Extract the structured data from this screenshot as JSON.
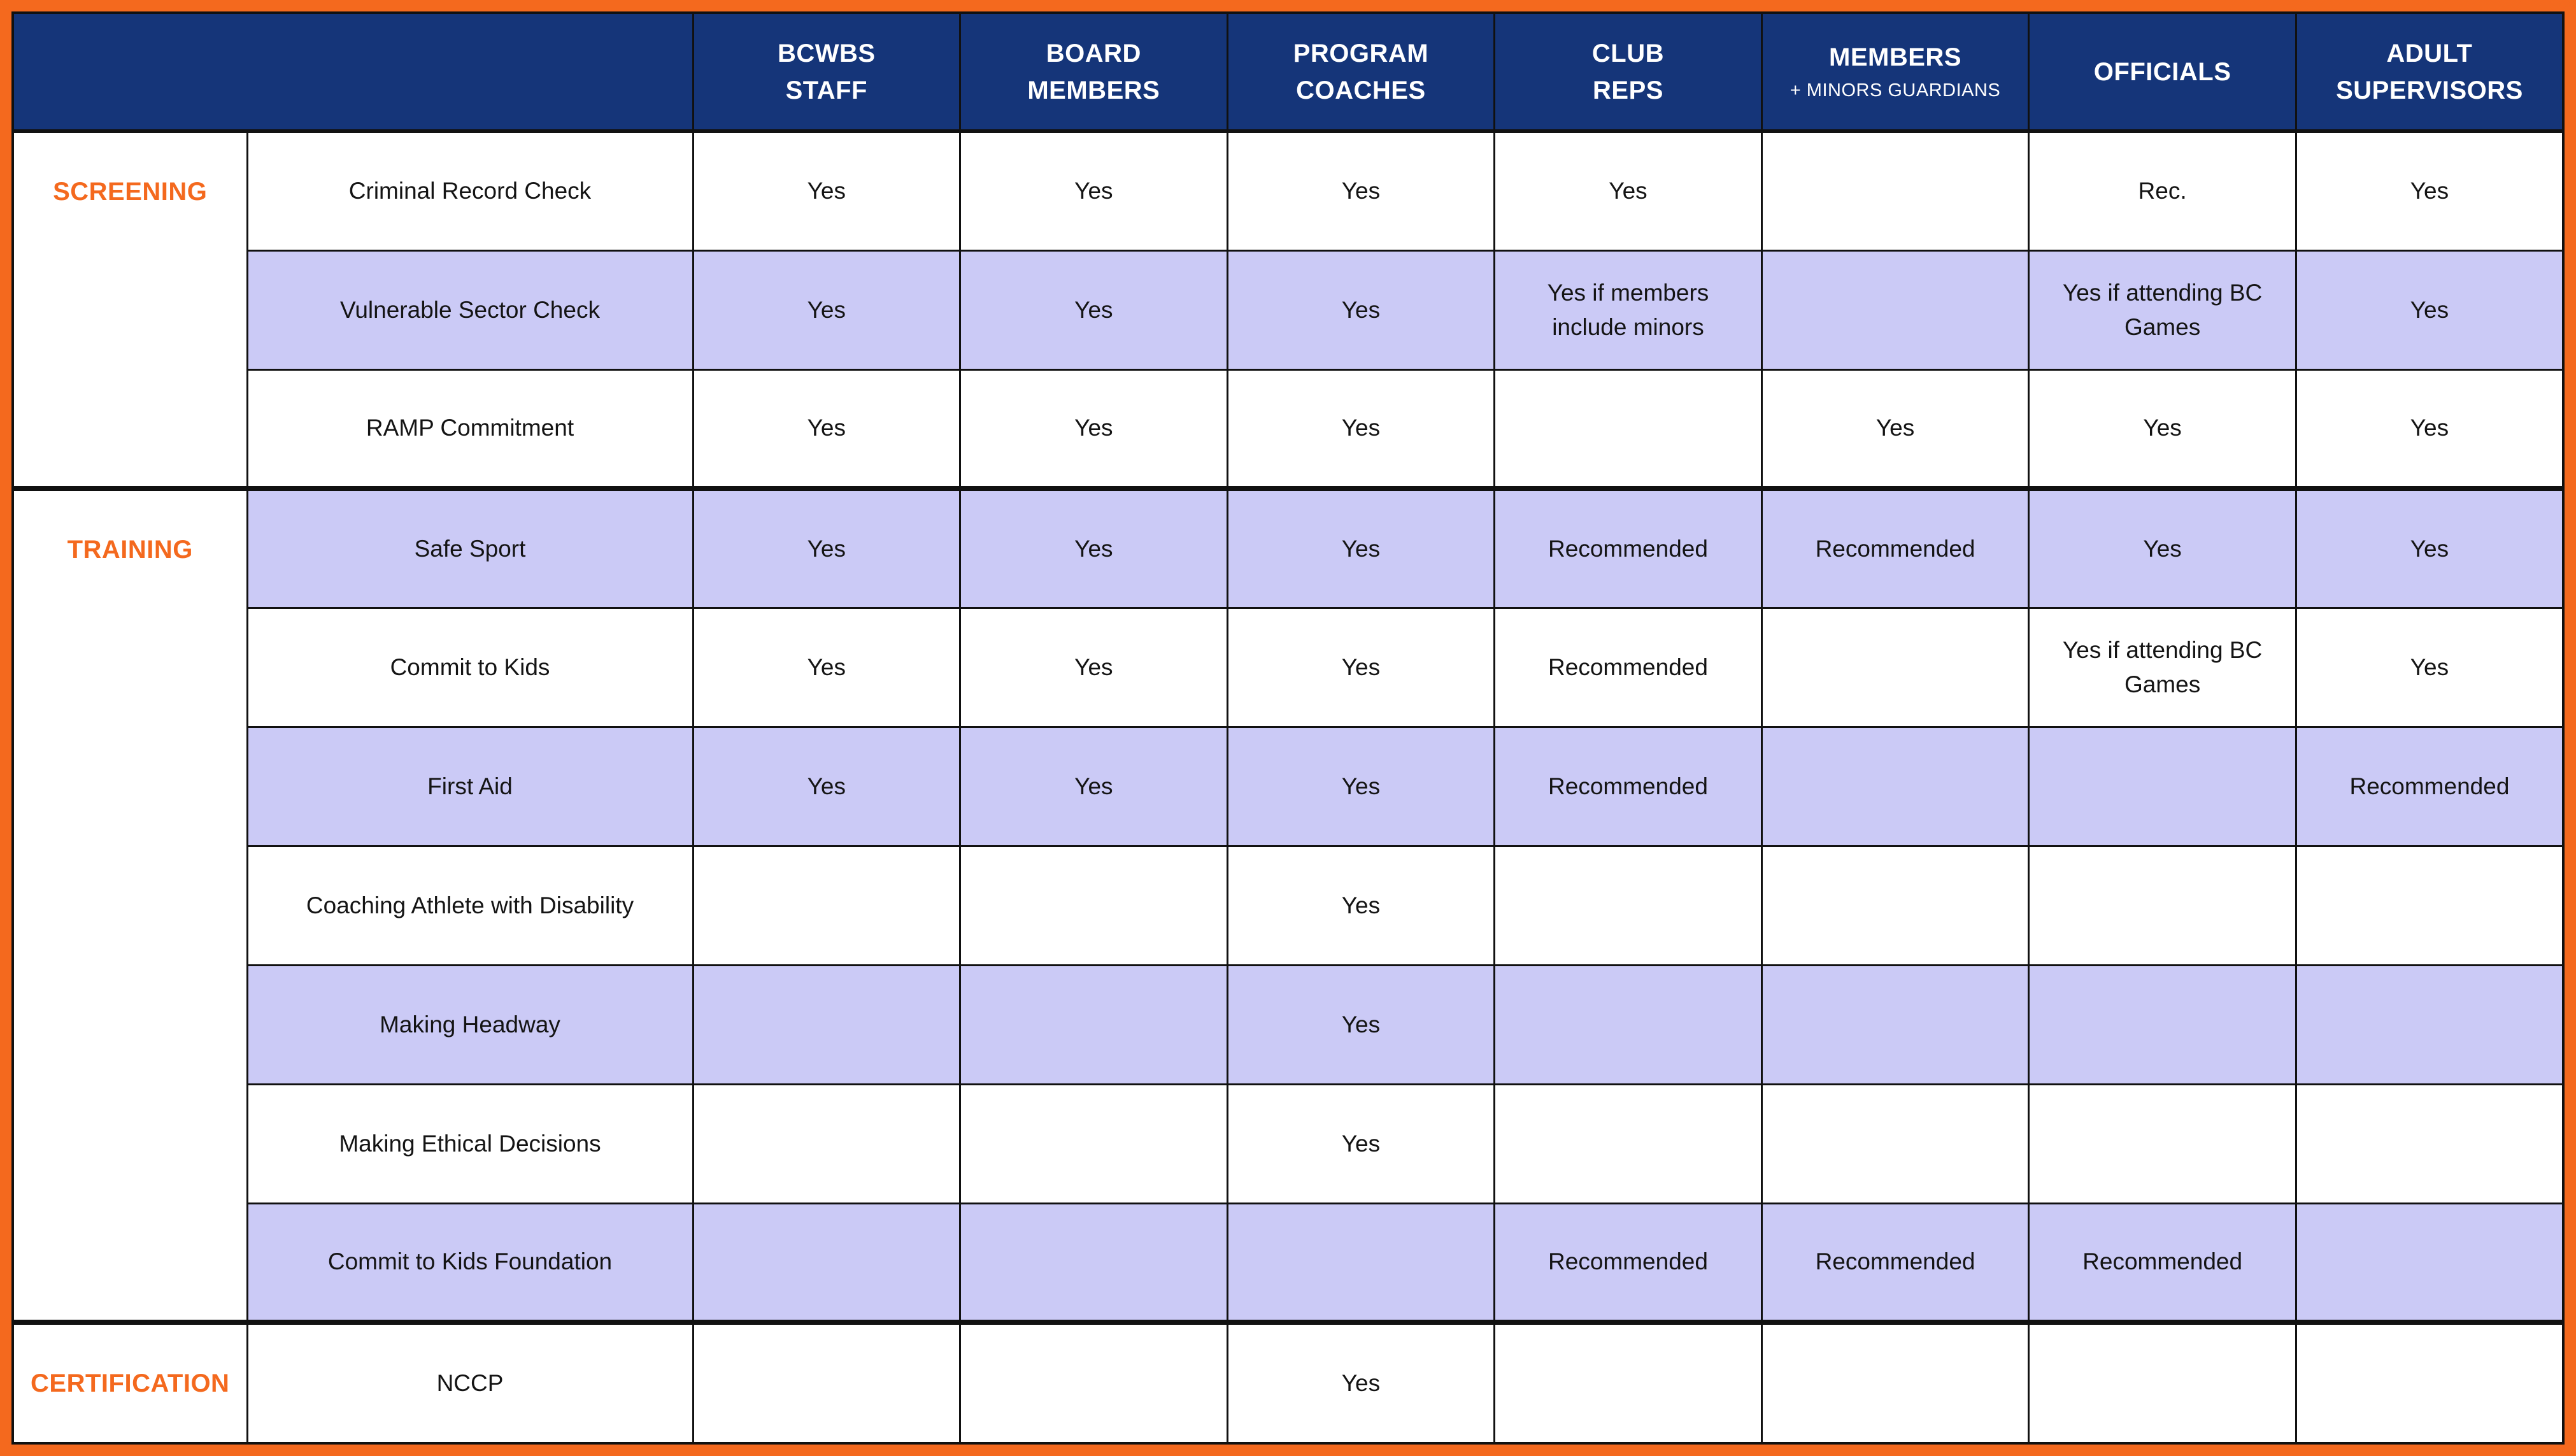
{
  "colors": {
    "frame_orange": "#F4691E",
    "header_navy": "#153579",
    "row_lavender": "#CBCAF6",
    "section_label_orange": "#F4691E",
    "grid_line": "#111111"
  },
  "header": {
    "corner": "",
    "columns": [
      {
        "line1": "BCWBS",
        "line2": "STAFF"
      },
      {
        "line1": "BOARD",
        "line2": "MEMBERS"
      },
      {
        "line1": "PROGRAM",
        "line2": "COACHES"
      },
      {
        "line1": "CLUB",
        "line2": "REPS"
      },
      {
        "line1": "MEMBERS",
        "line2": "+ MINORS GUARDIANS"
      },
      {
        "line1": "OFFICIALS"
      },
      {
        "line1": "ADULT",
        "line2": "SUPERVISORS"
      }
    ]
  },
  "sections": [
    {
      "label": "SCREENING",
      "rows": [
        {
          "name": "Criminal Record Check",
          "cells": [
            "Yes",
            "Yes",
            "Yes",
            "Yes",
            "",
            "Rec.",
            "Yes"
          ]
        },
        {
          "name": "Vulnerable Sector Check",
          "cells": [
            "Yes",
            "Yes",
            "Yes",
            "Yes if members include minors",
            "",
            "Yes if attending BC Games",
            "Yes"
          ]
        },
        {
          "name": "RAMP Commitment",
          "cells": [
            "Yes",
            "Yes",
            "Yes",
            "",
            "Yes",
            "Yes",
            "Yes"
          ]
        }
      ]
    },
    {
      "label": "TRAINING",
      "rows": [
        {
          "name": "Safe Sport",
          "cells": [
            "Yes",
            "Yes",
            "Yes",
            "Recommended",
            "Recommended",
            "Yes",
            "Yes"
          ]
        },
        {
          "name": "Commit to Kids",
          "cells": [
            "Yes",
            "Yes",
            "Yes",
            "Recommended",
            "",
            "Yes if attending BC Games",
            "Yes"
          ]
        },
        {
          "name": "First Aid",
          "cells": [
            "Yes",
            "Yes",
            "Yes",
            "Recommended",
            "",
            "",
            "Recommended"
          ]
        },
        {
          "name": "Coaching Athlete with Disability",
          "cells": [
            "",
            "",
            "Yes",
            "",
            "",
            "",
            ""
          ]
        },
        {
          "name": "Making Headway",
          "cells": [
            "",
            "",
            "Yes",
            "",
            "",
            "",
            ""
          ]
        },
        {
          "name": "Making Ethical Decisions",
          "cells": [
            "",
            "",
            "Yes",
            "",
            "",
            "",
            ""
          ]
        },
        {
          "name": "Commit to Kids Foundation",
          "cells": [
            "",
            "",
            "",
            "Recommended",
            "Recommended",
            "Recommended",
            ""
          ]
        }
      ]
    },
    {
      "label": "CERTIFICATION",
      "rows": [
        {
          "name": "NCCP",
          "cells": [
            "",
            "",
            "Yes",
            "",
            "",
            "",
            ""
          ]
        }
      ]
    }
  ]
}
